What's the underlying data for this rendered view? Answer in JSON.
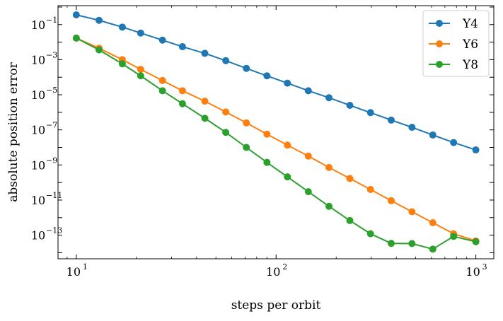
{
  "chart_data": {
    "type": "line",
    "xlabel": "steps per orbit",
    "ylabel": "absolute position error",
    "xscale": "log",
    "yscale": "log",
    "xlim": [
      8.1,
      1230
    ],
    "ylim": [
      4.5e-15,
      1.2
    ],
    "grid": false,
    "legend": "top-right",
    "x_tick_values": [
      10,
      100,
      1000
    ],
    "x_tick_labels": [
      "10",
      "10",
      "10"
    ],
    "x_tick_exponents": [
      "1",
      "2",
      "3"
    ],
    "y_tick_values": [
      1e-13,
      1e-11,
      1e-09,
      1e-07,
      1e-05,
      0.001,
      0.1
    ],
    "y_tick_labels": [
      "10",
      "10",
      "10",
      "10",
      "10",
      "10",
      "10"
    ],
    "y_tick_exponents": [
      "−13",
      "−11",
      "−9",
      "−7",
      "−5",
      "−3",
      "−1"
    ],
    "x": [
      10,
      13,
      17,
      21,
      27,
      34,
      44,
      56,
      71,
      90,
      114,
      145,
      184,
      234,
      297,
      377,
      479,
      609,
      774,
      1000
    ],
    "series": [
      {
        "name": "Y4",
        "color": "#1f77b4",
        "values": [
          0.36,
          0.175,
          0.072,
          0.033,
          0.013,
          0.0055,
          0.0023,
          0.00088,
          0.00032,
          0.00012,
          4.6e-05,
          1.7e-05,
          6.8e-06,
          2.5e-06,
          9.6e-07,
          3.6e-07,
          1.4e-07,
          5.1e-08,
          1.9e-08,
          7.2e-09
        ]
      },
      {
        "name": "Y6",
        "color": "#ff7f0e",
        "values": [
          0.017,
          0.0045,
          0.001,
          0.00028,
          6.5e-05,
          1.7e-05,
          4.3e-06,
          1.05e-06,
          2.5e-07,
          5.7e-08,
          1.35e-08,
          3.2e-09,
          7.2e-10,
          1.7e-10,
          4e-11,
          9.2e-12,
          2.15e-12,
          5.1e-13,
          1.2e-13,
          4.7e-14
        ]
      },
      {
        "name": "Y8",
        "color": "#2ca02c",
        "values": [
          0.017,
          0.0036,
          0.00058,
          0.00012,
          1.7e-05,
          3.1e-06,
          4.6e-07,
          7.2e-08,
          1e-08,
          1.4e-09,
          2.1e-10,
          3e-11,
          4.4e-12,
          6.8e-13,
          1.2e-13,
          3.4e-14,
          3.3e-14,
          1.6e-14,
          8.5e-14,
          4.2e-14
        ]
      }
    ]
  }
}
